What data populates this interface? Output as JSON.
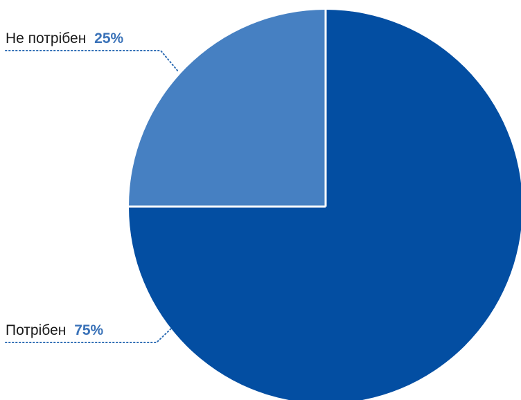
{
  "chart_data": {
    "type": "pie",
    "title": "",
    "slices": [
      {
        "label": "Не потрібен",
        "value": 25,
        "value_text": "25%",
        "color": "#4680c2"
      },
      {
        "label": "Потрібен",
        "value": 75,
        "value_text": "75%",
        "color": "#034ea2"
      }
    ],
    "start_angle_deg": 0,
    "direction": "counterclockwise",
    "separator_color": "#ffffff",
    "label_name_color": "#1a1a1a",
    "label_value_color": "#3a72b8",
    "leader_line_color": "#2e6db4",
    "leader_line_style": "dotted"
  }
}
